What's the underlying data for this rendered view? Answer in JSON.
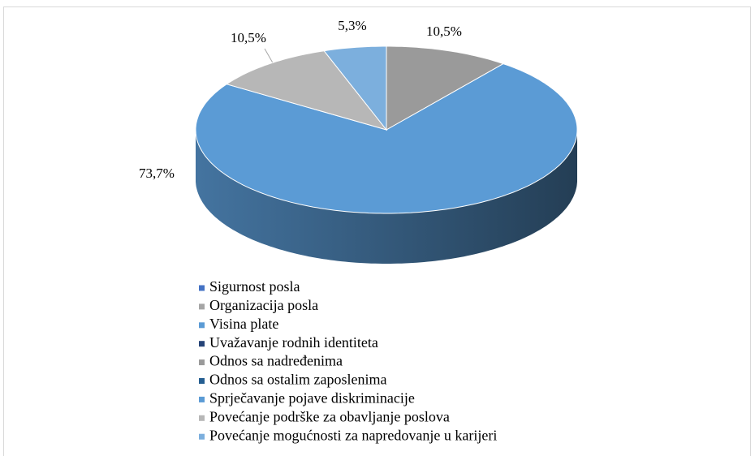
{
  "chart_data": {
    "type": "pie3d",
    "categories": [
      "Sigurnost posla",
      "Organizacija posla",
      "Visina plate",
      "Uvažavanje rodnih identiteta",
      "Odnos sa nadređenima",
      "Odnos sa ostalim zaposlenima",
      "Sprječavanje pojave diskriminacije",
      "Povećanje podrške za obavljanje poslova",
      "Povećanje mogućnosti za napredovanje u karijeri"
    ],
    "values": [
      0,
      0,
      0,
      0,
      10.5,
      0,
      73.7,
      10.5,
      5.3
    ],
    "value_labels": [
      null,
      null,
      null,
      null,
      "10,5%",
      null,
      "73,7%",
      "10,5%",
      "5,3%"
    ],
    "colors": [
      "#4472c4",
      "#a5a5a5",
      "#5b9bd5",
      "#264478",
      "#9a9a9a",
      "#255e91",
      "#5b9bd5",
      "#b7b7b7",
      "#7cafdd"
    ],
    "legend": "bottom"
  }
}
